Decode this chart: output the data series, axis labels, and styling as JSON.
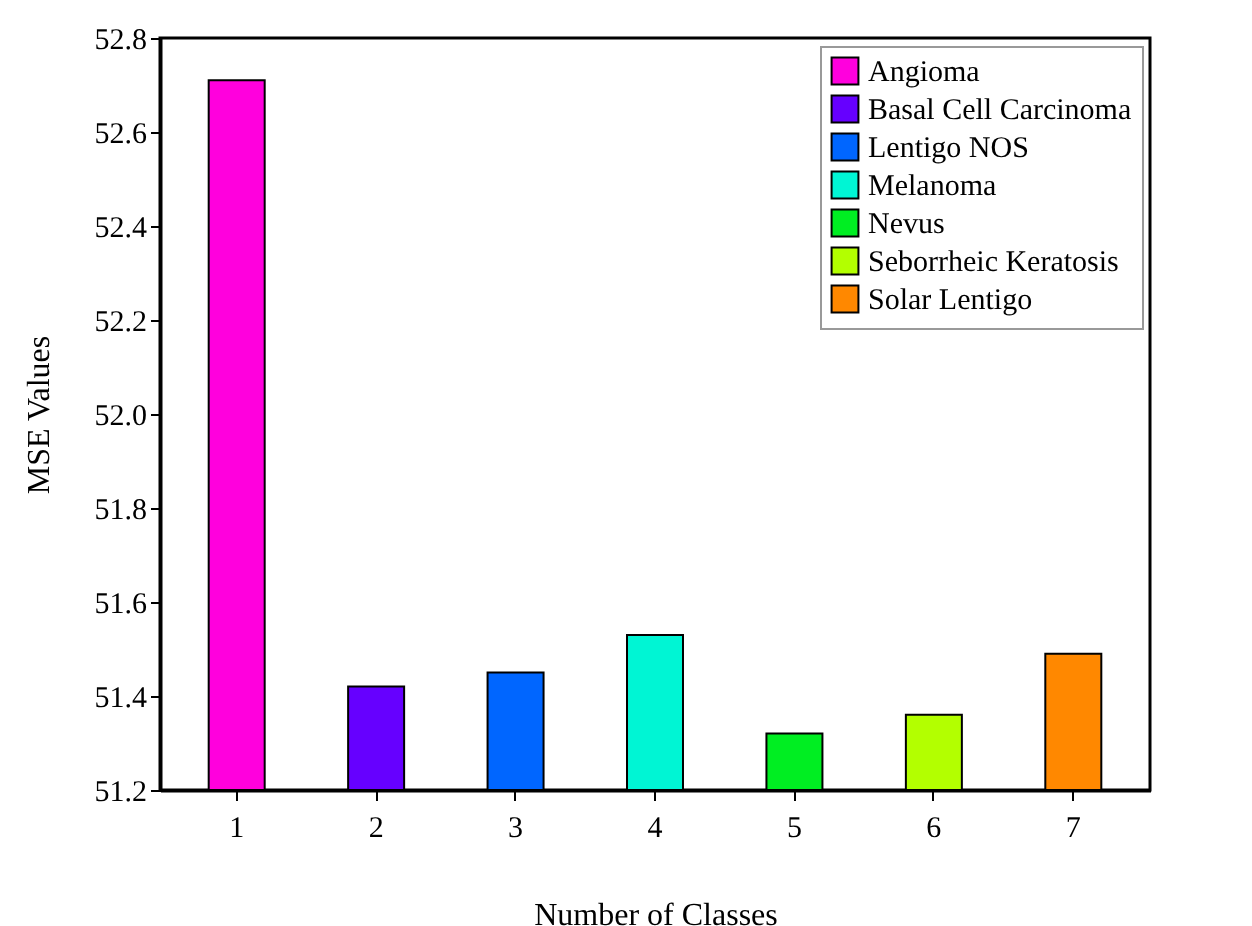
{
  "chart_data": {
    "type": "bar",
    "xlabel": "Number of Classes",
    "ylabel": "MSE Values",
    "categories": [
      "1",
      "2",
      "3",
      "4",
      "5",
      "6",
      "7"
    ],
    "series": [
      {
        "name": "Angioma",
        "color": "#ff00dd",
        "values": [
          52.71,
          null,
          null,
          null,
          null,
          null,
          null
        ]
      },
      {
        "name": "Basal Cell Carcinoma",
        "color": "#6600ff",
        "values": [
          null,
          51.42,
          null,
          null,
          null,
          null,
          null
        ]
      },
      {
        "name": "Lentigo NOS",
        "color": "#0066ff",
        "values": [
          null,
          null,
          51.45,
          null,
          null,
          null,
          null
        ]
      },
      {
        "name": "Melanoma",
        "color": "#00f5d4",
        "values": [
          null,
          null,
          null,
          51.53,
          null,
          null,
          null
        ]
      },
      {
        "name": "Nevus",
        "color": "#00ee22",
        "values": [
          null,
          null,
          null,
          null,
          51.32,
          null,
          null
        ]
      },
      {
        "name": "Seborrheic Keratosis",
        "color": "#b3ff00",
        "values": [
          null,
          null,
          null,
          null,
          null,
          51.36,
          null
        ]
      },
      {
        "name": "Solar Lentigo",
        "color": "#ff8800",
        "values": [
          null,
          null,
          null,
          null,
          null,
          null,
          51.49
        ]
      }
    ],
    "ylim": [
      51.2,
      52.8
    ],
    "yticks": [
      51.2,
      51.4,
      51.6,
      51.8,
      {
        "value": 52,
        "label": "52.0"
      },
      52.2,
      52.4,
      52.6,
      52.8
    ],
    "grid": false,
    "legend": "top right"
  }
}
